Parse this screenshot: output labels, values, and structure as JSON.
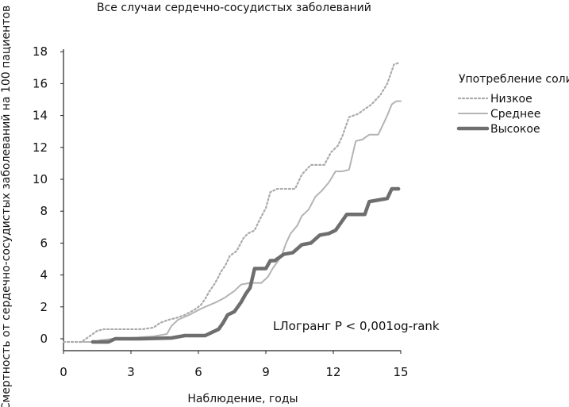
{
  "chart_data": {
    "type": "line",
    "title": "Все случаи сердечно-сосудистых заболеваний",
    "xlabel": "Наблюдение, годы",
    "ylabel": "Смертность от сердечно-сосудистых заболеваний на 100 пациентов",
    "xlim": [
      0,
      15
    ],
    "ylim": [
      0,
      18
    ],
    "x_ticks": [
      "0",
      "3",
      "6",
      "9",
      "12",
      "15"
    ],
    "y_ticks": [
      "0",
      "2",
      "4",
      "6",
      "8",
      "10",
      "12",
      "14",
      "16",
      "18"
    ],
    "grid": false,
    "legend": {
      "title": "Употребление соли",
      "position": "right"
    },
    "annotation": "LЛогранг P < 0,001og-rank",
    "series": [
      {
        "name": "Низкое",
        "color": "#aaaaaa",
        "style": "dotted",
        "points": [
          [
            0.0,
            -0.2
          ],
          [
            0.5,
            -0.2
          ],
          [
            0.8,
            -0.2
          ],
          [
            1.0,
            0.0
          ],
          [
            1.3,
            0.3
          ],
          [
            1.5,
            0.5
          ],
          [
            1.8,
            0.6
          ],
          [
            2.5,
            0.6
          ],
          [
            3.5,
            0.6
          ],
          [
            4.0,
            0.7
          ],
          [
            4.3,
            1.0
          ],
          [
            4.7,
            1.2
          ],
          [
            5.0,
            1.3
          ],
          [
            5.4,
            1.5
          ],
          [
            5.8,
            1.8
          ],
          [
            6.1,
            2.1
          ],
          [
            6.3,
            2.5
          ],
          [
            6.5,
            3.0
          ],
          [
            6.7,
            3.4
          ],
          [
            6.9,
            3.9
          ],
          [
            7.0,
            4.2
          ],
          [
            7.2,
            4.6
          ],
          [
            7.4,
            5.2
          ],
          [
            7.7,
            5.5
          ],
          [
            8.0,
            6.3
          ],
          [
            8.2,
            6.6
          ],
          [
            8.5,
            6.8
          ],
          [
            8.7,
            7.4
          ],
          [
            9.0,
            8.2
          ],
          [
            9.2,
            9.2
          ],
          [
            9.5,
            9.4
          ],
          [
            10.3,
            9.4
          ],
          [
            10.6,
            10.3
          ],
          [
            11.0,
            10.9
          ],
          [
            11.6,
            10.9
          ],
          [
            11.9,
            11.7
          ],
          [
            12.2,
            12.1
          ],
          [
            12.4,
            12.7
          ],
          [
            12.7,
            13.9
          ],
          [
            13.1,
            14.1
          ],
          [
            13.4,
            14.4
          ],
          [
            13.7,
            14.7
          ],
          [
            14.1,
            15.3
          ],
          [
            14.4,
            16.0
          ],
          [
            14.7,
            17.2
          ],
          [
            14.9,
            17.3
          ]
        ]
      },
      {
        "name": "Среднее",
        "color": "#b4b4b4",
        "style": "solid",
        "points": [
          [
            0.8,
            -0.2
          ],
          [
            1.4,
            -0.2
          ],
          [
            1.6,
            -0.1
          ],
          [
            2.2,
            0.0
          ],
          [
            3.0,
            0.05
          ],
          [
            4.0,
            0.15
          ],
          [
            4.6,
            0.3
          ],
          [
            4.8,
            0.8
          ],
          [
            5.1,
            1.2
          ],
          [
            5.6,
            1.5
          ],
          [
            6.0,
            1.8
          ],
          [
            6.3,
            2.0
          ],
          [
            6.8,
            2.3
          ],
          [
            7.2,
            2.6
          ],
          [
            7.6,
            3.0
          ],
          [
            7.9,
            3.4
          ],
          [
            8.3,
            3.5
          ],
          [
            8.8,
            3.5
          ],
          [
            9.1,
            3.9
          ],
          [
            9.3,
            4.4
          ],
          [
            9.7,
            5.2
          ],
          [
            9.9,
            6.0
          ],
          [
            10.1,
            6.6
          ],
          [
            10.4,
            7.1
          ],
          [
            10.6,
            7.7
          ],
          [
            10.9,
            8.1
          ],
          [
            11.2,
            8.9
          ],
          [
            11.5,
            9.3
          ],
          [
            11.8,
            9.8
          ],
          [
            12.1,
            10.5
          ],
          [
            12.4,
            10.5
          ],
          [
            12.7,
            10.6
          ],
          [
            13.0,
            12.4
          ],
          [
            13.3,
            12.5
          ],
          [
            13.6,
            12.8
          ],
          [
            14.0,
            12.8
          ],
          [
            14.4,
            14.0
          ],
          [
            14.6,
            14.7
          ],
          [
            14.8,
            14.9
          ],
          [
            15.0,
            14.9
          ]
        ]
      },
      {
        "name": "Высокое",
        "color": "#6e6e6e",
        "style": "solid",
        "points": [
          [
            1.3,
            -0.2
          ],
          [
            2.0,
            -0.2
          ],
          [
            2.3,
            0.0
          ],
          [
            3.4,
            0.0
          ],
          [
            4.8,
            0.05
          ],
          [
            5.4,
            0.2
          ],
          [
            6.3,
            0.2
          ],
          [
            6.6,
            0.4
          ],
          [
            6.9,
            0.6
          ],
          [
            7.1,
            1.0
          ],
          [
            7.3,
            1.5
          ],
          [
            7.6,
            1.7
          ],
          [
            7.9,
            2.3
          ],
          [
            8.1,
            2.8
          ],
          [
            8.3,
            3.2
          ],
          [
            8.5,
            4.4
          ],
          [
            9.0,
            4.4
          ],
          [
            9.2,
            4.9
          ],
          [
            9.4,
            4.9
          ],
          [
            9.8,
            5.3
          ],
          [
            10.2,
            5.4
          ],
          [
            10.6,
            5.9
          ],
          [
            11.0,
            6.0
          ],
          [
            11.4,
            6.5
          ],
          [
            11.8,
            6.6
          ],
          [
            12.1,
            6.8
          ],
          [
            12.3,
            7.2
          ],
          [
            12.6,
            7.8
          ],
          [
            13.0,
            7.8
          ],
          [
            13.4,
            7.8
          ],
          [
            13.6,
            8.6
          ],
          [
            14.0,
            8.7
          ],
          [
            14.4,
            8.8
          ],
          [
            14.6,
            9.4
          ],
          [
            14.9,
            9.4
          ]
        ]
      }
    ]
  }
}
